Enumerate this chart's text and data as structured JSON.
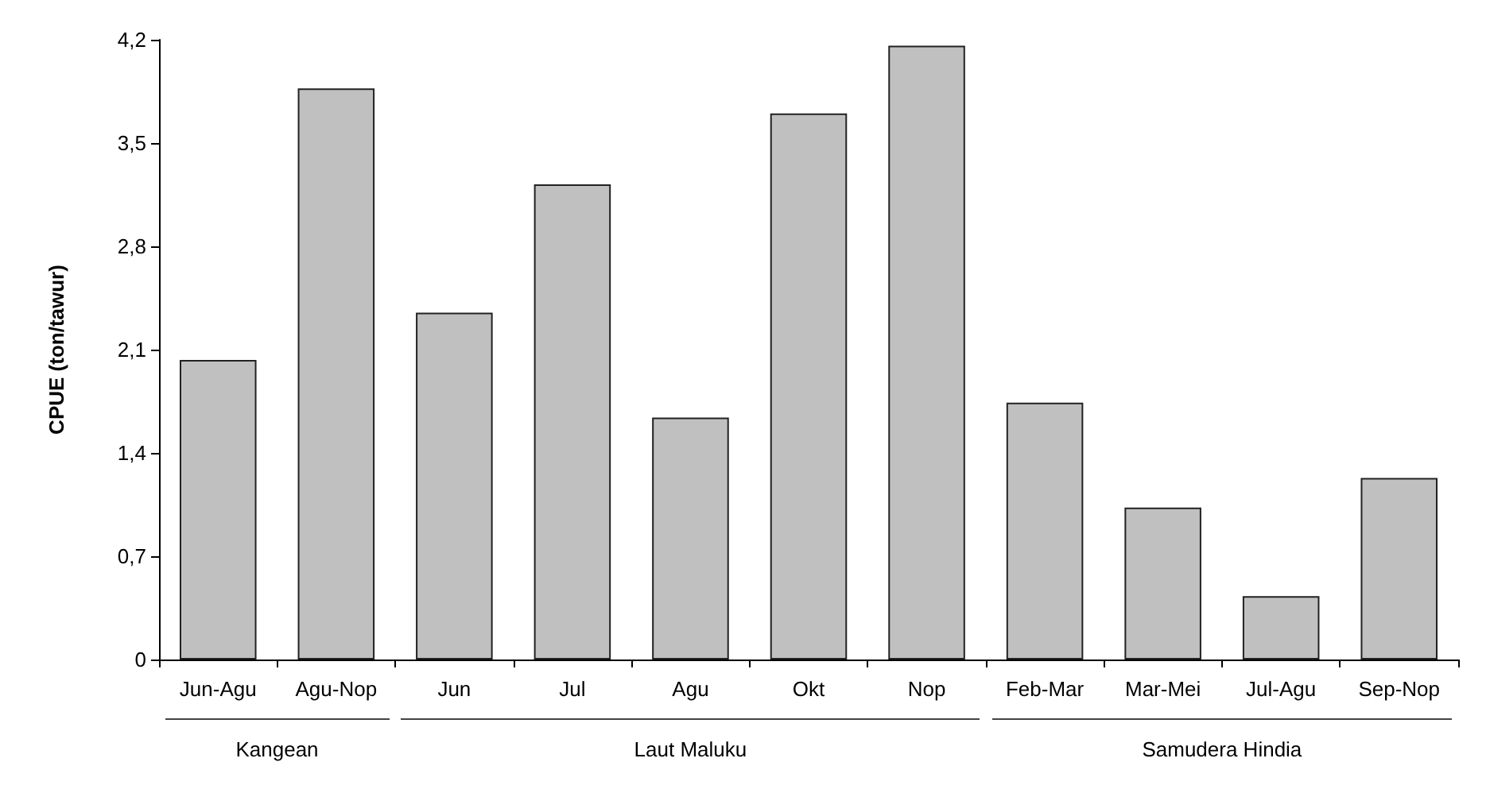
{
  "chart_data": {
    "type": "bar",
    "ylabel": "CPUE (ton/tawur)",
    "categories": [
      "Jun-Agu",
      "Agu-Nop",
      "Jun",
      "Jul",
      "Agu",
      "Okt",
      "Nop",
      "Feb-Mar",
      "Mar-Mei",
      "Jul-Agu",
      "Sep-Nop"
    ],
    "values": [
      2.03,
      3.87,
      2.35,
      3.22,
      1.64,
      3.7,
      4.16,
      1.74,
      1.03,
      0.43,
      1.23
    ],
    "color": "#c0c0c0",
    "ylim": [
      0,
      4.2
    ],
    "yticks": [
      0,
      {
        "value": 0.7,
        "label": "0,7"
      },
      {
        "value": 1.4,
        "label": "1,4"
      },
      {
        "value": 2.1,
        "label": "2,1"
      },
      {
        "value": 2.8,
        "label": "2,8"
      },
      {
        "value": 3.5,
        "label": "3,5"
      },
      {
        "value": 4.2,
        "label": "4,2"
      }
    ],
    "grid": false,
    "annotations": [
      "Kangean",
      "Laut Maluku",
      "Samudera Hindia"
    ]
  }
}
